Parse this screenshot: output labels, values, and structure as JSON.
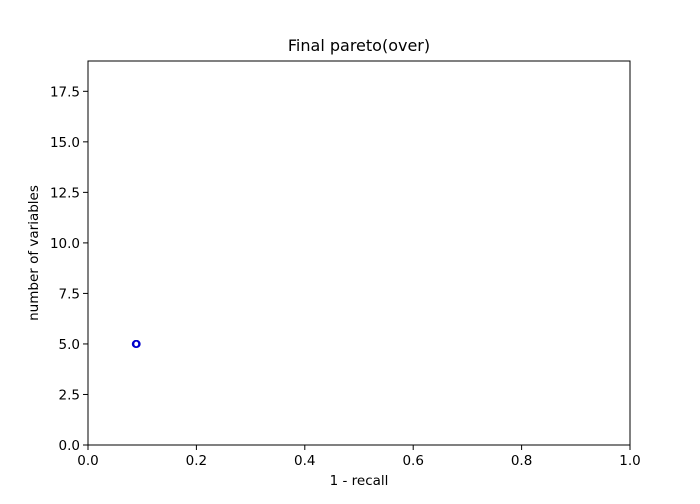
{
  "chart_data": {
    "type": "scatter",
    "title": "Final pareto(over)",
    "xlabel": "1 - recall",
    "ylabel": "number of variables",
    "xlim": [
      0.0,
      1.0
    ],
    "ylim": [
      0.0,
      19.0
    ],
    "xticks": [
      0.0,
      0.2,
      0.4,
      0.6,
      0.8,
      1.0
    ],
    "xtick_labels": [
      "0.0",
      "0.2",
      "0.4",
      "0.6",
      "0.8",
      "1.0"
    ],
    "yticks": [
      0.0,
      2.5,
      5.0,
      7.5,
      10.0,
      12.5,
      15.0,
      17.5
    ],
    "ytick_labels": [
      "0.0",
      "2.5",
      "5.0",
      "7.5",
      "10.0",
      "12.5",
      "15.0",
      "17.5"
    ],
    "grid": false,
    "legend": "none",
    "series": [
      {
        "marker": "hollow-circle",
        "color": "#0000cc",
        "points": [
          {
            "x": 0.088,
            "y": 5.0
          },
          {
            "x": 0.089,
            "y": 5.0
          },
          {
            "x": 0.09,
            "y": 5.0
          }
        ]
      }
    ]
  }
}
